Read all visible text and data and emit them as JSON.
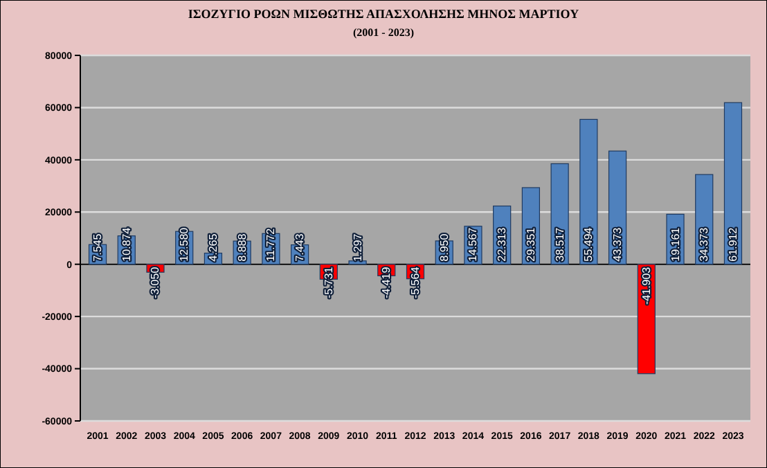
{
  "chart_data": {
    "type": "bar",
    "title": "ΙΣΟΖΥΓΙΟ ΡΟΩΝ ΜΙΣΘΩΤΗΣ ΑΠΑΣΧΟΛΗΣΗΣ ΜΗΝΟΣ ΜΑΡΤΙΟΥ",
    "subtitle": "(2001 - 2023)",
    "categories": [
      "2001",
      "2002",
      "2003",
      "2004",
      "2005",
      "2006",
      "2007",
      "2008",
      "2009",
      "2010",
      "2011",
      "2012",
      "2013",
      "2014",
      "2015",
      "2016",
      "2017",
      "2018",
      "2019",
      "2020",
      "2021",
      "2022",
      "2023"
    ],
    "values": [
      7545,
      10874,
      -3050,
      12580,
      4265,
      8888,
      11772,
      7443,
      -5731,
      1297,
      -4419,
      -5564,
      8950,
      14567,
      22313,
      29351,
      38517,
      55494,
      43373,
      -41903,
      19161,
      34373,
      61912
    ],
    "value_labels": [
      "7.545",
      "10.874",
      "-3.050",
      "12.580",
      "4.265",
      "8.888",
      "11.772",
      "7.443",
      "-5.731",
      "1.297",
      "-4.419",
      "-5.564",
      "8.950",
      "14.567",
      "22.313",
      "29.351",
      "38.517",
      "55.494",
      "43.373",
      "-41.903",
      "19.161",
      "34.373",
      "61.912"
    ],
    "colors": [
      "#4f81bd",
      "#4f81bd",
      "#ff0000",
      "#4f81bd",
      "#4f81bd",
      "#4f81bd",
      "#4f81bd",
      "#4f81bd",
      "#ff0000",
      "#4f81bd",
      "#ff0000",
      "#ff0000",
      "#4f81bd",
      "#4f81bd",
      "#4f81bd",
      "#4f81bd",
      "#4f81bd",
      "#4f81bd",
      "#4f81bd",
      "#ff0000",
      "#4f81bd",
      "#4f81bd",
      "#4f81bd"
    ],
    "ylim": [
      -60000,
      80000
    ],
    "yticks": [
      -60000,
      -40000,
      -20000,
      0,
      20000,
      40000,
      60000,
      80000
    ],
    "grid": "y"
  }
}
